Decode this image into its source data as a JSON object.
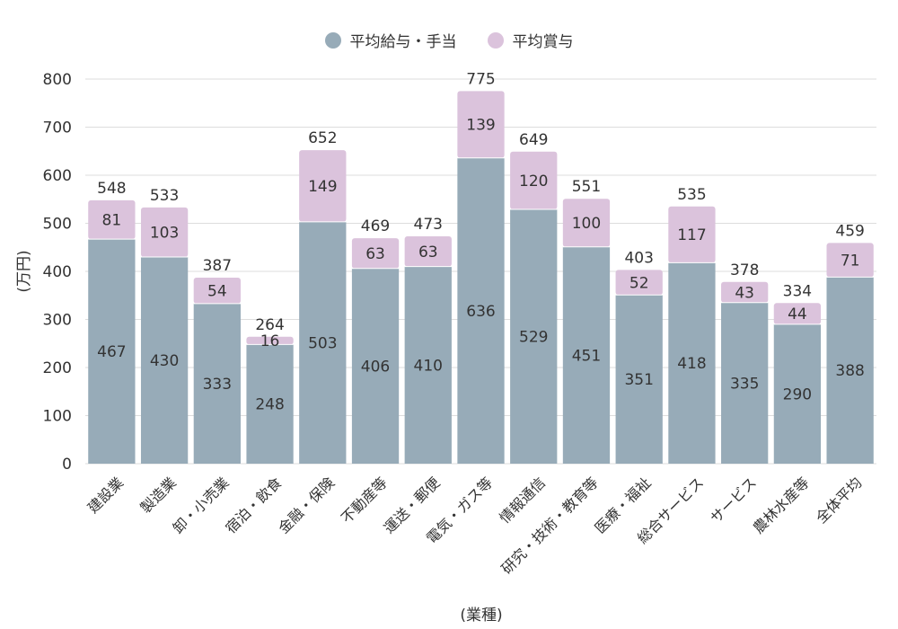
{
  "chart_data": {
    "type": "bar",
    "stacked": true,
    "categories": [
      "建設業",
      "製造業",
      "卸・小売業",
      "宿泊・飲食",
      "金融・保険",
      "不動産等",
      "運送・郵便",
      "電気・ガス等",
      "情報通信",
      "研究・技術・教育等",
      "医療・福祉",
      "総合サービス",
      "サービス",
      "農林水産等",
      "全体平均"
    ],
    "series": [
      {
        "name": "平均給与・手当",
        "color": "#97abb8",
        "values": [
          467,
          430,
          333,
          248,
          503,
          406,
          410,
          636,
          529,
          451,
          351,
          418,
          335,
          290,
          388
        ]
      },
      {
        "name": "平均賞与",
        "color": "#dbc3dc",
        "values": [
          81,
          103,
          54,
          16,
          149,
          63,
          63,
          139,
          120,
          100,
          52,
          117,
          43,
          44,
          71
        ]
      }
    ],
    "totals": [
      548,
      533,
      387,
      264,
      652,
      469,
      473,
      775,
      649,
      551,
      403,
      535,
      378,
      334,
      459
    ],
    "xlabel": "(業種)",
    "ylabel": "(万円)",
    "ylim": [
      0,
      800
    ],
    "yticks": [
      0,
      100,
      200,
      300,
      400,
      500,
      600,
      700,
      800
    ],
    "grid": true,
    "legend_position": "top-center"
  }
}
